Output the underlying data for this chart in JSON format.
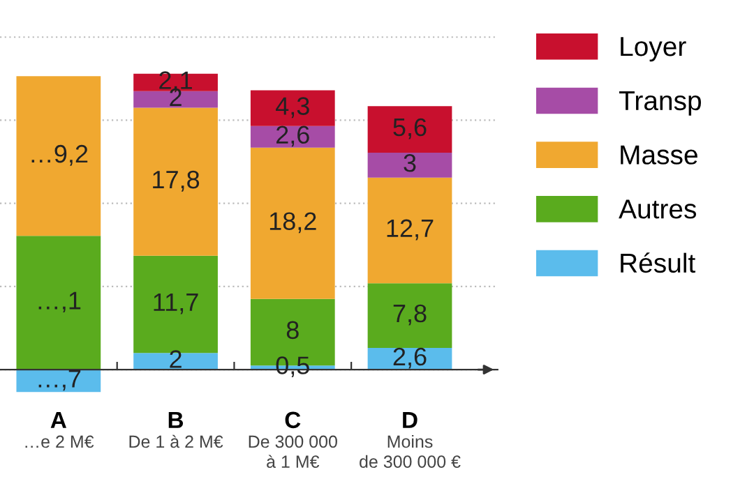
{
  "chart_data": {
    "type": "bar",
    "stacked": true,
    "categories": [
      "A\n…e 2 M€",
      "B\nDe 1 à 2 M€",
      "C\nDe 300 000\nà 1 M€",
      "D\nMoins\nde 300 000 €"
    ],
    "series": [
      {
        "name": "Résult",
        "color": "#5bbcec",
        "values": [
          -2.7,
          2,
          0.5,
          2.6
        ],
        "value_labels": [
          null,
          "2",
          "0,5",
          "2,6"
        ]
      },
      {
        "name": "Autres",
        "color": "#5aab1e",
        "values": [
          16.1,
          11.7,
          8,
          7.8
        ],
        "value_labels": [
          null,
          "11,7",
          "8",
          "7,8"
        ]
      },
      {
        "name": "Masse",
        "color": "#f0a830",
        "values": [
          19.2,
          17.8,
          18.2,
          12.7
        ],
        "value_labels": [
          null,
          "17,8",
          "18,2",
          "12,7"
        ]
      },
      {
        "name": "Transp",
        "color": "#a64ca6",
        "values": [
          null,
          2,
          2.6,
          3
        ],
        "value_labels": [
          null,
          "2",
          "2,6",
          "3"
        ]
      },
      {
        "name": "Loyer",
        "color": "#c8102e",
        "values": [
          null,
          2.1,
          4.3,
          5.6
        ],
        "value_labels": [
          null,
          "2,1",
          "4,3",
          "5,6"
        ]
      }
    ],
    "annotations": [
      "…,7",
      "…,1",
      "…9,2"
    ],
    "grid": "y",
    "legend": "right"
  }
}
